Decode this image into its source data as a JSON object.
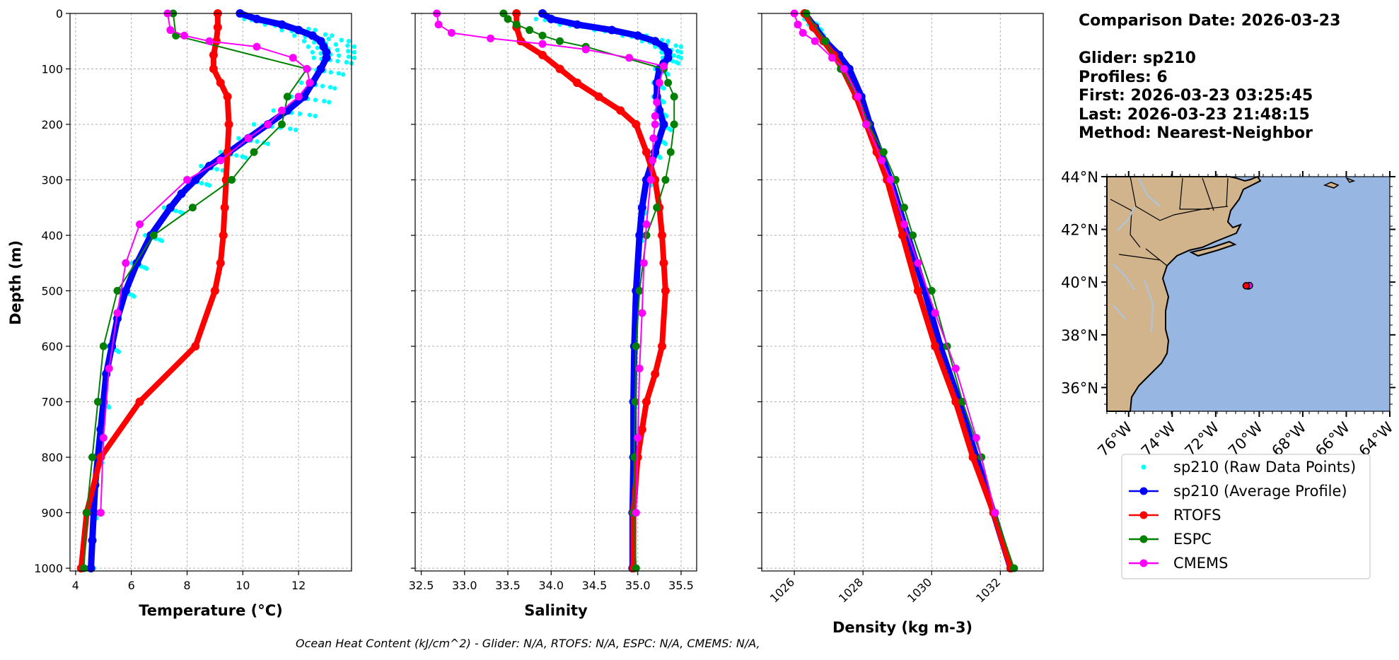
{
  "info": {
    "comparison_date": "Comparison Date: 2026-03-23",
    "glider": "Glider: sp210",
    "profiles": "Profiles: 6",
    "first": "First: 2026-03-23 03:25:45",
    "last": "Last: 2026-03-23 21:48:15",
    "method": "Method: Nearest-Neighbor"
  },
  "caption": "Ocean Heat Content (kJ/cm^2) - Glider: N/A,  RTOFS: N/A,  ESPC: N/A,  CMEMS: N/A,",
  "colors": {
    "raw": "#00ffff",
    "average": "#0000ff",
    "rtofs": "#ff0000",
    "espc": "#008000",
    "cmems": "#ff00ff",
    "land": "#d2b48c",
    "ocean": "#97b6e1"
  },
  "legend": [
    {
      "key": "raw",
      "label": "sp210 (Raw Data Points)",
      "style": "dot"
    },
    {
      "key": "average",
      "label": "sp210 (Average Profile)",
      "style": "line"
    },
    {
      "key": "rtofs",
      "label": "RTOFS",
      "style": "line"
    },
    {
      "key": "espc",
      "label": "ESPC",
      "style": "line"
    },
    {
      "key": "cmems",
      "label": "CMEMS",
      "style": "line"
    }
  ],
  "map": {
    "lat_ticks": [
      "44°N",
      "42°N",
      "40°N",
      "38°N",
      "36°N"
    ],
    "lat_values": [
      44,
      42,
      40,
      38,
      36
    ],
    "lon_ticks": [
      "76°W",
      "74°W",
      "72°W",
      "70°W",
      "68°W",
      "66°W",
      "64°W"
    ],
    "lon_values": [
      -76,
      -74,
      -72,
      -70,
      -68,
      -66,
      -64
    ],
    "lat_range": [
      35.1,
      44.0
    ],
    "lon_range": [
      -77.0,
      -64.0
    ],
    "points": [
      {
        "key": "espc",
        "lon": -70.5,
        "lat": 39.85
      },
      {
        "key": "cmems",
        "lon": -70.45,
        "lat": 39.87
      },
      {
        "key": "rtofs",
        "lon": -70.6,
        "lat": 39.86
      }
    ]
  },
  "chart_data": [
    {
      "type": "line",
      "name": "temperature",
      "xlabel": "Temperature (°C)",
      "ylabel": "Depth (m)",
      "xlim": [
        3.8,
        13.9
      ],
      "ylim": [
        1005,
        0
      ],
      "xticks": [
        4,
        6,
        8,
        10,
        12
      ],
      "yticks": [
        0,
        100,
        200,
        300,
        400,
        500,
        600,
        700,
        800,
        900,
        1000
      ],
      "series": [
        {
          "key": "average",
          "name": "sp210 (Average Profile)",
          "depth": [
            0,
            10,
            20,
            30,
            40,
            50,
            60,
            70,
            80,
            100,
            125,
            150,
            175,
            200,
            225,
            250,
            275,
            300,
            325,
            350,
            400,
            450,
            500,
            550,
            600,
            650,
            700,
            750,
            800,
            850,
            900,
            950,
            1000
          ],
          "values": [
            9.9,
            10.5,
            11.4,
            12.0,
            12.5,
            12.8,
            12.9,
            13.0,
            13.0,
            12.8,
            12.5,
            12.2,
            11.6,
            10.9,
            10.2,
            9.5,
            8.8,
            8.3,
            7.8,
            7.4,
            6.7,
            6.2,
            5.8,
            5.5,
            5.3,
            5.1,
            5.0,
            4.9,
            4.8,
            4.7,
            4.65,
            4.6,
            4.55
          ]
        },
        {
          "key": "rtofs",
          "name": "RTOFS",
          "depth": [
            0,
            25,
            50,
            75,
            100,
            125,
            150,
            200,
            250,
            300,
            350,
            400,
            450,
            500,
            600,
            700,
            800,
            900,
            1000
          ],
          "values": [
            9.1,
            9.1,
            9.05,
            8.95,
            8.95,
            9.2,
            9.45,
            9.5,
            9.45,
            9.4,
            9.35,
            9.3,
            9.2,
            9.0,
            8.3,
            6.3,
            4.9,
            4.4,
            4.2
          ]
        },
        {
          "key": "espc",
          "name": "ESPC",
          "depth": [
            0,
            40,
            100,
            150,
            200,
            250,
            300,
            350,
            400,
            500,
            600,
            700,
            800,
            900,
            1000
          ],
          "values": [
            7.5,
            7.6,
            12.3,
            11.6,
            11.4,
            10.4,
            9.6,
            8.2,
            6.8,
            5.5,
            5.0,
            4.8,
            4.6,
            4.4,
            4.3
          ]
        },
        {
          "key": "cmems",
          "name": "CMEMS",
          "depth": [
            0,
            30,
            40,
            50,
            60,
            80,
            100,
            125,
            150,
            175,
            200,
            225,
            265,
            300,
            380,
            450,
            540,
            640,
            765,
            900
          ],
          "values": [
            7.3,
            7.4,
            7.9,
            8.8,
            10.5,
            11.8,
            12.3,
            12.4,
            12.0,
            11.4,
            10.9,
            10.2,
            9.2,
            8.0,
            6.3,
            5.8,
            5.5,
            5.2,
            5.0,
            4.9
          ]
        }
      ],
      "raw_scatter": {
        "key": "raw",
        "depth": [
          10,
          20,
          30,
          40,
          50,
          60,
          70,
          80,
          100,
          125,
          150,
          175,
          200,
          225,
          250,
          275,
          300,
          350,
          400,
          450,
          500,
          600,
          700,
          800,
          900,
          1000
        ],
        "spread": [
          0.9,
          1.2,
          1.2,
          1.3,
          1.2,
          1.1,
          1.0,
          0.9,
          0.8,
          0.8,
          0.9,
          1.0,
          1.0,
          0.7,
          0.6,
          0.6,
          0.5,
          0.45,
          0.4,
          0.35,
          0.3,
          0.25,
          0.2,
          0.15,
          0.1,
          0.1
        ]
      }
    },
    {
      "type": "line",
      "name": "salinity",
      "xlabel": "Salinity",
      "xlim": [
        32.43,
        35.68
      ],
      "ylim": [
        1005,
        0
      ],
      "xticks": [
        32.5,
        33.0,
        33.5,
        34.0,
        34.5,
        35.0,
        35.5
      ],
      "xtick_labels": [
        "32.5",
        "33.0",
        "33.5",
        "34.0",
        "34.5",
        "35.0",
        "35.5"
      ],
      "series": [
        {
          "key": "average",
          "name": "sp210 (Average Profile)",
          "depth": [
            0,
            10,
            20,
            30,
            40,
            50,
            60,
            70,
            80,
            90,
            100,
            125,
            150,
            175,
            200,
            250,
            300,
            350,
            400,
            500,
            600,
            700,
            800,
            900,
            1000
          ],
          "values": [
            33.9,
            34.0,
            34.3,
            34.7,
            35.0,
            35.2,
            35.3,
            35.35,
            35.35,
            35.3,
            35.25,
            35.22,
            35.22,
            35.25,
            35.3,
            35.2,
            35.1,
            35.05,
            35.02,
            34.98,
            34.96,
            34.95,
            34.95,
            34.94,
            34.94
          ]
        },
        {
          "key": "rtofs",
          "name": "RTOFS",
          "depth": [
            0,
            25,
            50,
            75,
            100,
            125,
            150,
            175,
            200,
            250,
            300,
            350,
            400,
            450,
            500,
            600,
            650,
            700,
            750,
            800,
            900,
            1000
          ],
          "values": [
            33.6,
            33.6,
            33.65,
            33.9,
            34.1,
            34.3,
            34.55,
            34.8,
            34.98,
            35.1,
            35.2,
            35.25,
            35.28,
            35.3,
            35.32,
            35.28,
            35.2,
            35.1,
            35.05,
            35.0,
            34.95,
            34.95
          ]
        },
        {
          "key": "espc",
          "name": "ESPC",
          "depth": [
            0,
            10,
            20,
            30,
            40,
            50,
            60,
            100,
            125,
            150,
            200,
            250,
            300,
            350,
            400,
            500,
            600,
            700,
            800,
            900,
            1000
          ],
          "values": [
            33.45,
            33.5,
            33.6,
            33.75,
            33.9,
            34.1,
            34.4,
            35.3,
            35.35,
            35.42,
            35.42,
            35.38,
            35.32,
            35.22,
            35.1,
            35.02,
            34.98,
            34.97,
            34.96,
            34.95,
            34.98
          ]
        },
        {
          "key": "cmems",
          "name": "CMEMS",
          "depth": [
            0,
            20,
            35,
            45,
            55,
            65,
            80,
            95,
            125,
            160,
            185,
            200,
            225,
            265,
            300,
            380,
            450,
            540,
            640,
            765,
            900
          ],
          "values": [
            32.68,
            32.7,
            32.85,
            33.3,
            33.9,
            34.4,
            34.9,
            35.3,
            35.25,
            35.22,
            35.2,
            35.2,
            35.18,
            35.17,
            35.15,
            35.1,
            35.07,
            35.05,
            35.02,
            35.0,
            34.98
          ]
        }
      ],
      "raw_scatter": {
        "key": "raw",
        "depth": [
          10,
          20,
          30,
          40,
          50,
          60,
          70,
          80,
          100,
          125,
          150,
          175,
          200,
          225,
          250,
          300,
          350,
          400,
          500,
          600,
          700,
          800,
          900,
          1000
        ],
        "spread": [
          0.35,
          0.4,
          0.4,
          0.35,
          0.3,
          0.2,
          0.15,
          0.12,
          0.1,
          0.08,
          0.08,
          0.08,
          0.08,
          0.07,
          0.06,
          0.05,
          0.04,
          0.03,
          0.02,
          0.02,
          0.02,
          0.01,
          0.01,
          0.01
        ]
      }
    },
    {
      "type": "line",
      "name": "density",
      "xlabel": "Density (kg m-3)",
      "xlim": [
        1025.05,
        1033.25
      ],
      "ylim": [
        1005,
        0
      ],
      "xticks": [
        1026,
        1028,
        1030,
        1032
      ],
      "series": [
        {
          "key": "average",
          "name": "sp210 (Average Profile)",
          "depth": [
            0,
            25,
            50,
            75,
            100,
            150,
            200,
            250,
            300,
            400,
            500,
            600,
            700,
            800,
            900,
            1000
          ],
          "values": [
            1026.3,
            1026.6,
            1026.9,
            1027.3,
            1027.6,
            1027.95,
            1028.2,
            1028.5,
            1028.8,
            1029.3,
            1029.8,
            1030.25,
            1030.8,
            1031.3,
            1031.8,
            1032.3
          ]
        },
        {
          "key": "rtofs",
          "name": "RTOFS",
          "depth": [
            0,
            25,
            50,
            75,
            100,
            150,
            200,
            250,
            300,
            400,
            500,
            600,
            700,
            800,
            900,
            1000
          ],
          "values": [
            1026.3,
            1026.55,
            1026.85,
            1027.15,
            1027.4,
            1027.8,
            1028.1,
            1028.4,
            1028.7,
            1029.15,
            1029.6,
            1030.1,
            1030.7,
            1031.2,
            1031.8,
            1032.3
          ]
        },
        {
          "key": "espc",
          "name": "ESPC",
          "depth": [
            0,
            50,
            100,
            150,
            200,
            250,
            300,
            350,
            400,
            500,
            600,
            700,
            800,
            900,
            1000
          ],
          "values": [
            1026.35,
            1026.9,
            1027.35,
            1027.85,
            1028.15,
            1028.6,
            1028.95,
            1029.2,
            1029.45,
            1030.0,
            1030.45,
            1030.9,
            1031.45,
            1031.85,
            1032.4
          ]
        },
        {
          "key": "cmems",
          "name": "CMEMS",
          "depth": [
            0,
            20,
            35,
            50,
            80,
            100,
            150,
            200,
            265,
            300,
            380,
            450,
            540,
            640,
            765,
            900
          ],
          "values": [
            1026.0,
            1026.1,
            1026.25,
            1026.6,
            1027.1,
            1027.45,
            1027.85,
            1028.1,
            1028.55,
            1028.8,
            1029.2,
            1029.6,
            1030.1,
            1030.7,
            1031.3,
            1031.85
          ]
        }
      ],
      "raw_scatter": {
        "key": "raw",
        "depth": [
          10,
          20,
          30,
          40,
          50,
          75,
          100,
          150,
          200,
          250,
          300,
          400,
          500,
          600,
          700,
          800,
          900,
          1000
        ],
        "spread": [
          0.25,
          0.25,
          0.2,
          0.2,
          0.15,
          0.12,
          0.1,
          0.08,
          0.07,
          0.06,
          0.05,
          0.04,
          0.04,
          0.03,
          0.03,
          0.02,
          0.02,
          0.02
        ]
      }
    }
  ]
}
